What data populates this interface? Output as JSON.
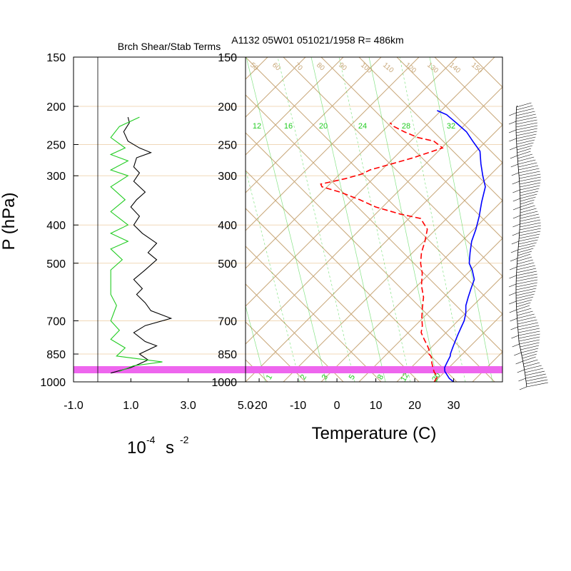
{
  "title_left": "Brch Shear/Stab Terms",
  "title_right": "A1132 05W01 051021/1958 R= 486km",
  "y_axis_label": "P (hPa)",
  "left_xlabel_base": "10",
  "left_xlabel_exp": "-4",
  "left_xlabel_unit": "s",
  "left_xlabel_exp2": "-2",
  "right_xlabel": "Temperature (C)",
  "colors": {
    "isobar": "#f0d8b8",
    "skew_lines": "#c8a87a",
    "mixing_ratio": "#22cc22",
    "temperature": "#0000ff",
    "dewpoint": "#ff0000",
    "surface_band": "#ee66ee",
    "wind_barbs": "#000000",
    "stab_term": "#000000",
    "shear_term": "#22cc22"
  },
  "chart_data": [
    {
      "type": "line",
      "name": "branch-shear-stability-terms",
      "title": "Brch Shear/Stab Terms",
      "xlim": [
        -1.0,
        5.0
      ],
      "x_ticks": [
        "-1.0",
        "1.0",
        "3.0",
        "5.0"
      ],
      "ylim_hpa": [
        1000,
        150
      ],
      "y_ticks": [
        "150",
        "200",
        "250",
        "300",
        "400",
        "500",
        "700",
        "850",
        "1000"
      ],
      "series": [
        {
          "color": "black",
          "points": [
            [
              0.9,
              213
            ],
            [
              0.95,
              220
            ],
            [
              0.75,
              232
            ],
            [
              0.9,
              245
            ],
            [
              1.3,
              255
            ],
            [
              1.7,
              262
            ],
            [
              1.2,
              270
            ],
            [
              1.1,
              285
            ],
            [
              1.3,
              295
            ],
            [
              1.1,
              310
            ],
            [
              1.5,
              330
            ],
            [
              1.2,
              345
            ],
            [
              1.0,
              360
            ],
            [
              1.3,
              380
            ],
            [
              1.1,
              400
            ],
            [
              1.4,
              420
            ],
            [
              1.9,
              445
            ],
            [
              1.6,
              470
            ],
            [
              1.9,
              490
            ],
            [
              1.5,
              520
            ],
            [
              1.1,
              550
            ],
            [
              1.4,
              580
            ],
            [
              1.2,
              600
            ],
            [
              1.5,
              630
            ],
            [
              1.7,
              660
            ],
            [
              2.4,
              690
            ],
            [
              1.5,
              720
            ],
            [
              1.1,
              750
            ],
            [
              1.5,
              790
            ],
            [
              1.9,
              810
            ],
            [
              1.3,
              850
            ],
            [
              1.6,
              880
            ],
            [
              1.3,
              900
            ],
            [
              1.0,
              920
            ],
            [
              0.3,
              950
            ]
          ]
        },
        {
          "color": "#22cc22",
          "points": [
            [
              1.3,
              213
            ],
            [
              0.6,
              225
            ],
            [
              0.3,
              240
            ],
            [
              0.8,
              255
            ],
            [
              0.3,
              265
            ],
            [
              0.9,
              275
            ],
            [
              0.3,
              290
            ],
            [
              0.9,
              300
            ],
            [
              0.3,
              320
            ],
            [
              0.8,
              345
            ],
            [
              0.3,
              370
            ],
            [
              0.9,
              400
            ],
            [
              0.3,
              420
            ],
            [
              0.9,
              440
            ],
            [
              0.3,
              460
            ],
            [
              0.7,
              490
            ],
            [
              0.3,
              520
            ],
            [
              0.3,
              600
            ],
            [
              0.5,
              640
            ],
            [
              0.3,
              700
            ],
            [
              0.6,
              740
            ],
            [
              0.3,
              780
            ],
            [
              0.8,
              820
            ],
            [
              0.5,
              860
            ],
            [
              2.1,
              890
            ],
            [
              1.1,
              910
            ],
            [
              0.6,
              940
            ]
          ]
        }
      ]
    },
    {
      "type": "line",
      "name": "skew-t-log-p",
      "title": "A1132 05W01 051021/1958 R= 486km",
      "xlabel": "Temperature (C)",
      "ylabel": "P (hPa)",
      "xlim": [
        -23.5,
        42
      ],
      "x_ticks": [
        "-20",
        "-10",
        "0",
        "10",
        "20",
        "30"
      ],
      "ylim_hpa": [
        1000,
        150
      ],
      "y_ticks": [
        "150",
        "200",
        "250",
        "300",
        "400",
        "500",
        "700",
        "850",
        "1000"
      ],
      "mixing_ratio_labels": [
        "12",
        "16",
        "20",
        "24",
        "28",
        "32"
      ],
      "mixing_ratio_bottom_labels": [
        "1",
        "2",
        "3",
        "5",
        "8",
        "12",
        "20"
      ],
      "adiabat_labels": [
        "50",
        "60",
        "70",
        "80",
        "90",
        "100",
        "110",
        "120",
        "130",
        "140",
        "150"
      ],
      "series": [
        {
          "name": "temperature",
          "color": "blue",
          "style": "solid",
          "points": [
            [
              30.0,
              1000
            ],
            [
              28.0,
              980
            ],
            [
              26.5,
              960
            ],
            [
              25.0,
              940
            ],
            [
              24.0,
              920
            ],
            [
              23.5,
              900
            ],
            [
              23.0,
              880
            ],
            [
              22.5,
              860
            ],
            [
              22.0,
              850
            ],
            [
              21.0,
              820
            ],
            [
              20.0,
              790
            ],
            [
              19.0,
              760
            ],
            [
              18.0,
              730
            ],
            [
              17.0,
              700
            ],
            [
              15.5,
              670
            ],
            [
              13.5,
              640
            ],
            [
              12.0,
              610
            ],
            [
              10.5,
              580
            ],
            [
              9.0,
              550
            ],
            [
              6.0,
              520
            ],
            [
              3.5,
              500
            ],
            [
              1.0,
              470
            ],
            [
              -1.5,
              440
            ],
            [
              -3.5,
              410
            ],
            [
              -6.0,
              380
            ],
            [
              -9.0,
              350
            ],
            [
              -12.0,
              320
            ],
            [
              -15.5,
              300
            ],
            [
              -19.0,
              280
            ],
            [
              -22.5,
              260
            ],
            [
              -27.0,
              245
            ],
            [
              -31.0,
              232
            ],
            [
              -36.0,
              220
            ],
            [
              -40.5,
              210
            ],
            [
              -44.0,
              205
            ]
          ]
        },
        {
          "name": "dewpoint",
          "color": "red",
          "style": "dashed",
          "points": [
            [
              25.0,
              1000
            ],
            [
              24.5,
              970
            ],
            [
              22.5,
              945
            ],
            [
              21.0,
              920
            ],
            [
              19.5,
              895
            ],
            [
              18.5,
              875
            ],
            [
              17.5,
              860
            ],
            [
              16.5,
              850
            ],
            [
              15.5,
              830
            ],
            [
              14.0,
              810
            ],
            [
              11.5,
              780
            ],
            [
              9.0,
              750
            ],
            [
              7.5,
              720
            ],
            [
              5.5,
              690
            ],
            [
              3.0,
              650
            ],
            [
              0.5,
              610
            ],
            [
              -3.0,
              570
            ],
            [
              -6.0,
              530
            ],
            [
              -9.0,
              500
            ],
            [
              -11.5,
              470
            ],
            [
              -13.5,
              440
            ],
            [
              -16.0,
              410
            ],
            [
              -20.5,
              385
            ],
            [
              -27.0,
              375
            ],
            [
              -35.0,
              360
            ],
            [
              -41.0,
              345
            ],
            [
              -48.0,
              330
            ],
            [
              -54.0,
              320
            ],
            [
              -55.0,
              315
            ],
            [
              -50.0,
              305
            ],
            [
              -47.0,
              297
            ],
            [
              -46.0,
              290
            ],
            [
              -42.0,
              280
            ],
            [
              -38.0,
              270
            ],
            [
              -33.0,
              255
            ],
            [
              -37.0,
              245
            ],
            [
              -42.0,
              240
            ],
            [
              -47.0,
              232
            ],
            [
              -51.0,
              225
            ],
            [
              -53.0,
              220
            ]
          ]
        }
      ]
    }
  ]
}
